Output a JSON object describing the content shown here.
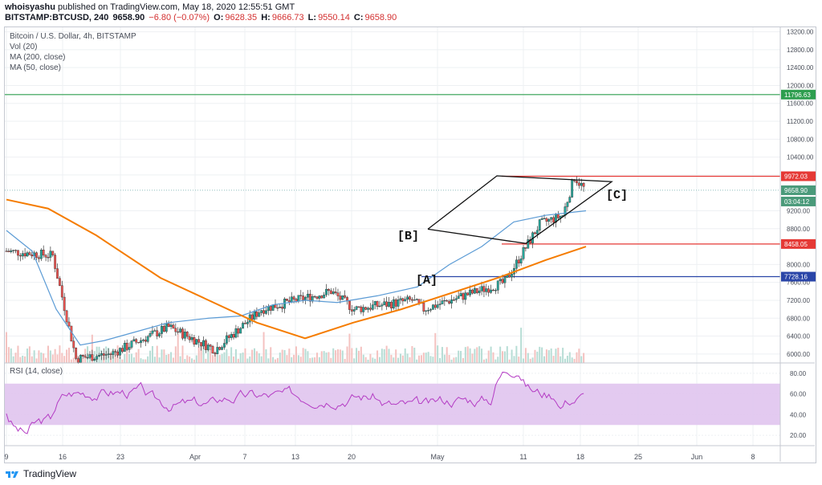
{
  "header": {
    "publisher": "whoisyashu",
    "published_text": "published on TradingView.com, May 18, 2020 12:55:51 GMT",
    "symbol": "BITSTAMP:BTCUSD, 240",
    "last": "9658.90",
    "change": "−6.80 (−0.07%)",
    "o_label": "O:",
    "o": "9628.35",
    "h_label": "H:",
    "h": "9666.73",
    "l_label": "L:",
    "l": "9550.14",
    "c_label": "C:",
    "c": "9658.90"
  },
  "legend": {
    "title": "Bitcoin / U.S. Dollar, 4h, BITSTAMP",
    "vol": "Vol (20)",
    "ma200": "MA (200, close)",
    "ma50": "MA (50, close)",
    "rsi": "RSI (14, close)"
  },
  "price_axis": [
    "13200.00",
    "12800.00",
    "12400.00",
    "12000.00",
    "11600.00",
    "11200.00",
    "10800.00",
    "10400.00",
    "10000.00",
    "9200.00",
    "8800.00",
    "8000.00",
    "7600.00",
    "7200.00",
    "6800.00",
    "6400.00",
    "6000.00"
  ],
  "rsi_axis": [
    "80.00",
    "60.00",
    "40.00",
    "20.00"
  ],
  "time_axis": [
    "9",
    "16",
    "23",
    "Apr",
    "7",
    "13",
    "20",
    "May",
    "11",
    "18",
    "25",
    "Jun",
    "8"
  ],
  "price_badges": [
    {
      "label": "11796.63",
      "color": "#2e9e4f"
    },
    {
      "label": "9972.03",
      "color": "#e53935"
    },
    {
      "label": "9658.90",
      "color": "#4a9a7a"
    },
    {
      "label": "03:04:12",
      "color": "#4a9a7a"
    },
    {
      "label": "8458.05",
      "color": "#e53935"
    },
    {
      "label": "7728.16",
      "color": "#2a45a8"
    }
  ],
  "annotations": {
    "a": "[A]",
    "b": "[B]",
    "c": "[C]"
  },
  "footer": {
    "brand": "TradingView"
  },
  "colors": {
    "up": "#26a69a",
    "down": "#ef5350",
    "ma50": "#5b9bd5",
    "ma200": "#f57c00",
    "rsi": "#b43cc4",
    "rsi_band": "#e0c4ee",
    "green_line": "#2e9e4f",
    "red_line": "#e53935",
    "blue_line": "#2a45a8"
  },
  "chart_data": [
    {
      "type": "line",
      "title": "Bitcoin / U.S. Dollar, 4h, BITSTAMP",
      "ylim": [
        5800,
        13300
      ],
      "x": [
        "9",
        "16",
        "23",
        "Apr",
        "7",
        "13",
        "20",
        "May",
        "11",
        "18"
      ],
      "series": [
        {
          "name": "MA (50, close)",
          "values": [
            8800,
            7900,
            6300,
            6300,
            6600,
            6900,
            7100,
            7200,
            7600,
            9200
          ]
        },
        {
          "name": "MA (200, close)",
          "values": [
            9500,
            9200,
            8300,
            7300,
            6700,
            6350,
            6700,
            7100,
            7400,
            8400
          ]
        }
      ],
      "horizontal_levels": [
        11796.63,
        9972.03,
        8458.05,
        7728.16
      ]
    },
    {
      "type": "line",
      "title": "RSI (14, close)",
      "ylim": [
        10,
        90
      ],
      "band": [
        30,
        70
      ]
    }
  ]
}
